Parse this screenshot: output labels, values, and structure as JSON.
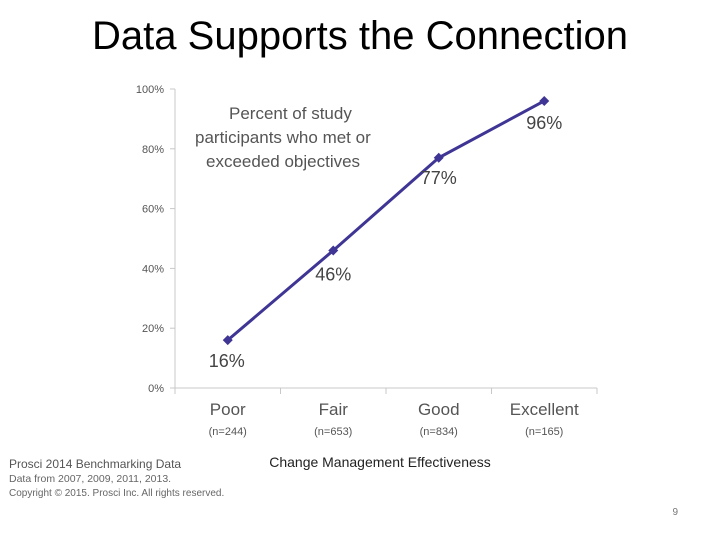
{
  "slide": {
    "title": "Data Supports the Connection",
    "page_number": "9"
  },
  "source": {
    "line1": "Prosci 2014 Benchmarking Data",
    "line2": "Data from 2007, 2009, 2011, 2013.",
    "line3": "Copyright © 2015. Prosci Inc. All rights reserved."
  },
  "chart_data": {
    "type": "line",
    "title": "",
    "xlabel": "Change Management Effectiveness",
    "ylabel": "",
    "categories": [
      "Poor",
      "Fair",
      "Good",
      "Excellent"
    ],
    "sample_sizes": [
      "(n=244)",
      "(n=653)",
      "(n=834)",
      "(n=165)"
    ],
    "series": [
      {
        "values": [
          16,
          46,
          77,
          96
        ]
      }
    ],
    "data_labels": [
      "16%",
      "46%",
      "77%",
      "96%"
    ],
    "annotation": [
      "Percent of study",
      "participants who met or",
      "exceeded objectives"
    ],
    "yticks": [
      "0%",
      "20%",
      "40%",
      "60%",
      "80%",
      "100%"
    ],
    "ylim": [
      0,
      100
    ],
    "grid": false,
    "legend": "none",
    "line_color": "#3f3594"
  }
}
